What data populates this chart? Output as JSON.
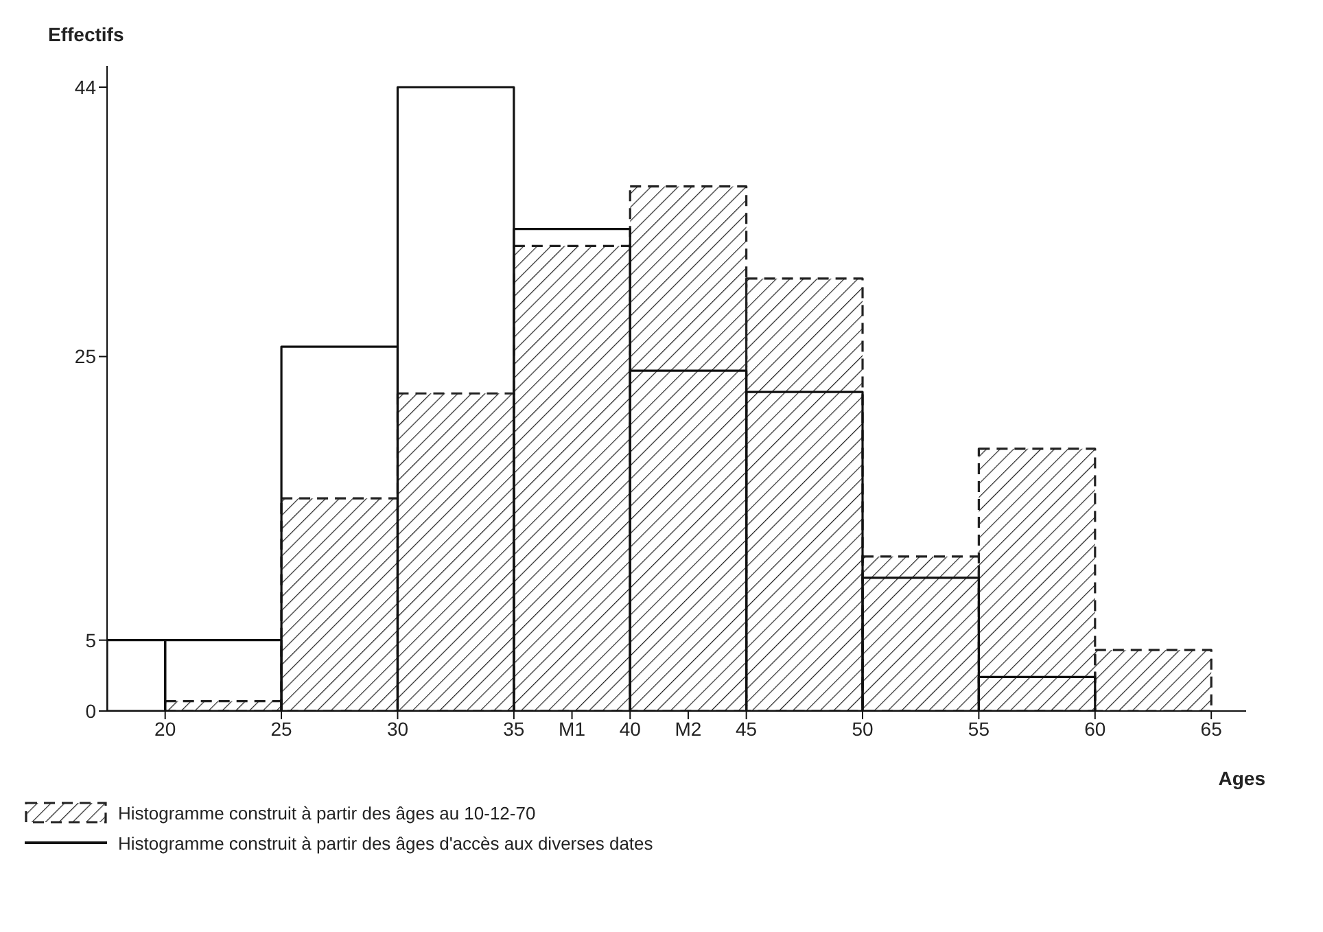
{
  "chart_data": {
    "type": "histogram",
    "xlabel": "Ages",
    "ylabel": "Effectifs",
    "bins": [
      17.5,
      20,
      25,
      30,
      35,
      40,
      45,
      50,
      55,
      60,
      65
    ],
    "series": [
      {
        "name": "Histogramme construit à partir des âges au 10-12-70",
        "color": "#222222",
        "line_style": "dashed",
        "values": [
          null,
          0.7,
          15,
          22.4,
          32.8,
          37,
          30.5,
          10.9,
          18.5,
          4.3
        ]
      },
      {
        "name": "Histogramme construit à partir des âges d'accès aux diverses dates",
        "color": "#111111",
        "line_style": "solid",
        "values": [
          5,
          5,
          25.7,
          44,
          34,
          24,
          22.5,
          9.4,
          2.4,
          null
        ]
      }
    ],
    "xlim": [
      17.5,
      66.5
    ],
    "xticks": [
      20,
      25,
      30,
      35,
      {
        "value": 37.5,
        "label": "M1"
      },
      40,
      {
        "value": 42.5,
        "label": "M2"
      },
      45,
      50,
      55,
      60,
      65
    ],
    "ylim": [
      0,
      45.5
    ],
    "yticks": [
      0,
      5,
      25,
      44
    ],
    "legend": "bottom left"
  }
}
